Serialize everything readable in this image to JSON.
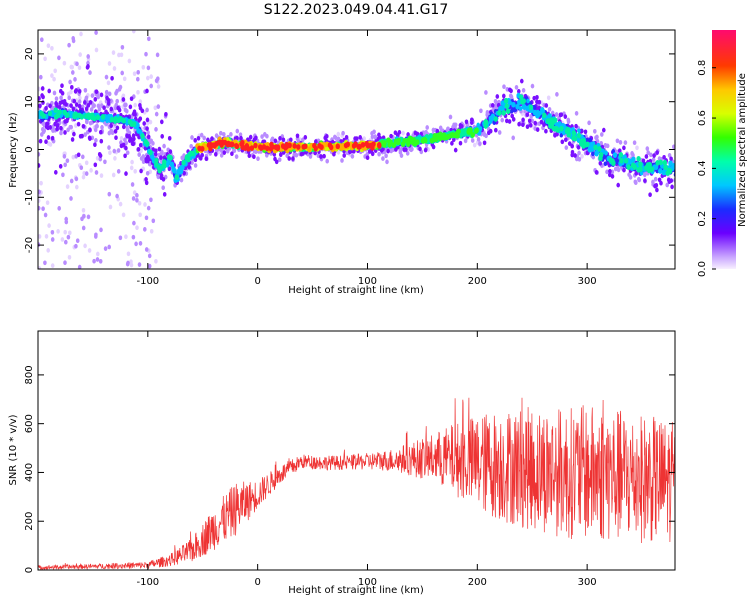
{
  "title": "S122.2023.049.04.41.G17",
  "chart_data": [
    {
      "type": "heatmap",
      "xlabel": "Height of straight line (km)",
      "ylabel": "Frequency (Hz)",
      "xlim": [
        -200,
        380
      ],
      "ylim": [
        -25,
        25
      ],
      "xticks": [
        -100,
        0,
        100,
        200,
        300
      ],
      "yticks": [
        -20,
        -10,
        0,
        10,
        20
      ],
      "colorbar": {
        "label": "Normalized spectral amplitude",
        "range": [
          0,
          0.95
        ],
        "ticks": [
          "0.0",
          "0.2",
          "0.4",
          "0.6",
          "0.8"
        ]
      },
      "ridge": {
        "x": [
          -200,
          -180,
          -150,
          -120,
          -110,
          -100,
          -90,
          -80,
          -75,
          -70,
          -65,
          -60,
          -55,
          -50,
          -40,
          -30,
          -20,
          0,
          50,
          100,
          150,
          200,
          215,
          225,
          240,
          260,
          280,
          300,
          320,
          350,
          380
        ],
        "y": [
          7,
          7.5,
          7,
          6,
          5,
          0,
          -4,
          -2,
          -6,
          -4,
          -2,
          -1,
          0,
          0.5,
          1,
          1.5,
          1,
          0.5,
          0.5,
          0.8,
          2,
          4,
          7,
          9,
          10,
          7,
          4,
          1,
          -2,
          -3.5,
          -4
        ]
      }
    },
    {
      "type": "line",
      "xlabel": "Height of straight line (km)",
      "ylabel": "SNR (10 * v/v)",
      "xlim": [
        -200,
        380
      ],
      "ylim": [
        0,
        980
      ],
      "xticks": [
        -100,
        0,
        100,
        200,
        300
      ],
      "yticks": [
        0,
        200,
        400,
        600,
        800
      ],
      "color": "#ee3333",
      "envelope": {
        "x": [
          -200,
          -150,
          -100,
          -80,
          -60,
          -40,
          -20,
          0,
          20,
          40,
          60,
          80,
          100,
          120,
          140,
          160,
          180,
          200,
          220,
          240,
          260,
          280,
          300,
          320,
          340,
          360,
          380
        ],
        "mean": [
          10,
          15,
          20,
          40,
          80,
          170,
          250,
          310,
          390,
          445,
          440,
          440,
          445,
          450,
          455,
          460,
          455,
          440,
          430,
          420,
          410,
          400,
          400,
          390,
          380,
          370,
          360
        ],
        "spread": [
          8,
          10,
          15,
          25,
          50,
          90,
          110,
          60,
          40,
          30,
          30,
          30,
          35,
          45,
          70,
          100,
          150,
          200,
          230,
          250,
          260,
          270,
          280,
          280,
          270,
          260,
          250
        ]
      }
    }
  ]
}
